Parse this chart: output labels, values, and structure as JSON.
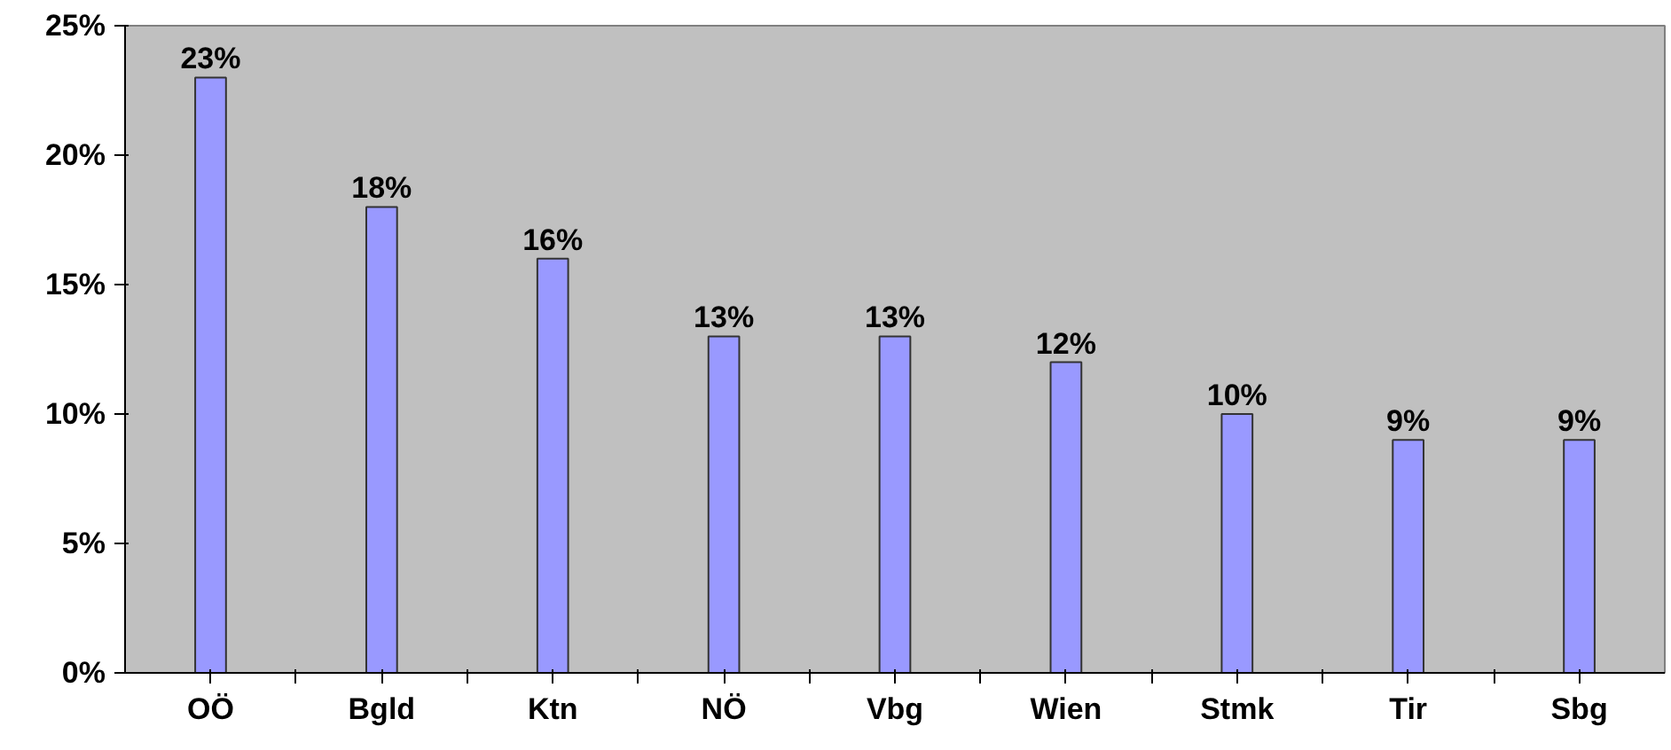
{
  "chart_data": {
    "type": "bar",
    "categories": [
      "OÖ",
      "Bgld",
      "Ktn",
      "NÖ",
      "Vbg",
      "Wien",
      "Stmk",
      "Tir",
      "Sbg"
    ],
    "values": [
      23,
      18,
      16,
      13,
      13,
      12,
      10,
      9,
      9
    ],
    "value_labels": [
      "23%",
      "18%",
      "16%",
      "13%",
      "13%",
      "12%",
      "10%",
      "9%",
      "9%"
    ],
    "color": "#9999ff",
    "ylim": [
      0,
      25
    ],
    "yticks": [
      {
        "value": 0,
        "label": "0%"
      },
      {
        "value": 5,
        "label": "5%"
      },
      {
        "value": 10,
        "label": "10%"
      },
      {
        "value": 15,
        "label": "15%"
      },
      {
        "value": 20,
        "label": "20%"
      },
      {
        "value": 25,
        "label": "25%"
      }
    ],
    "grid": false
  }
}
